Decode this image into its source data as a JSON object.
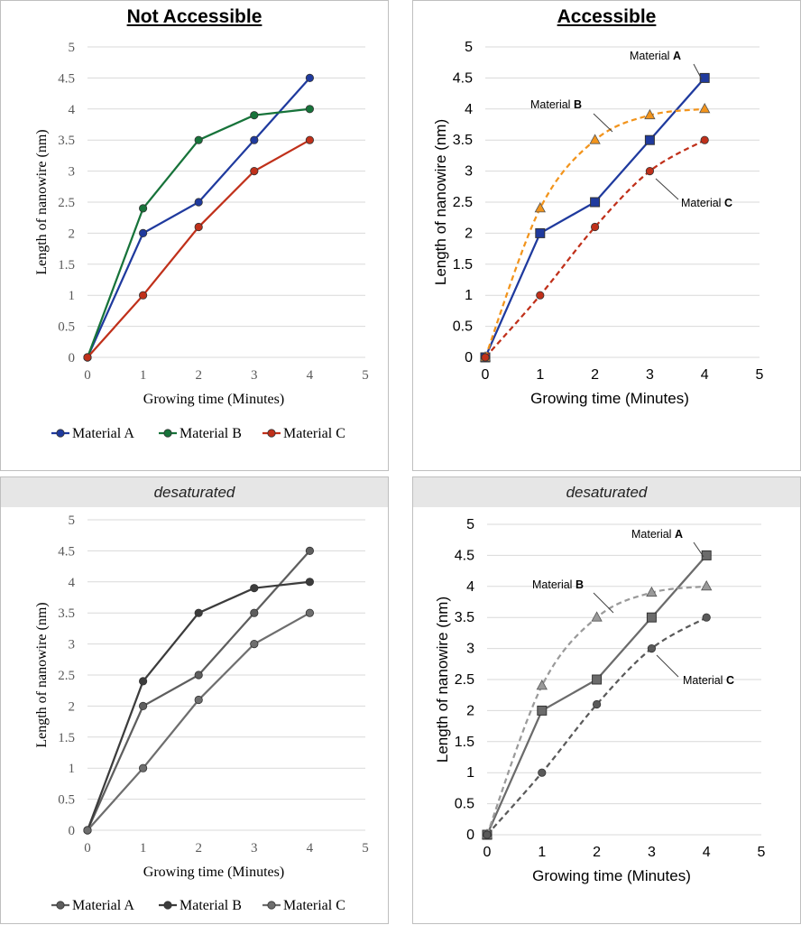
{
  "titles": {
    "not_accessible": "Not Accessible",
    "accessible": "Accessible",
    "desaturated_left": "desaturated",
    "desaturated_right": "desaturated"
  },
  "chart_data": [
    {
      "id": "top-left",
      "type": "line",
      "title": "Not Accessible",
      "xlabel": "Growing time (Minutes)",
      "ylabel": "Length of nanowire (nm)",
      "x": [
        0,
        1,
        2,
        3,
        4
      ],
      "xticks": [
        "0",
        "1",
        "2",
        "3",
        "4",
        "5"
      ],
      "yticks": [
        "0",
        "0.5",
        "1",
        "1.5",
        "2",
        "2.5",
        "3",
        "3.5",
        "4",
        "4.5",
        "5"
      ],
      "xlim": [
        0,
        5
      ],
      "ylim": [
        0,
        5
      ],
      "legend": "bottom",
      "series": [
        {
          "name": "Material A",
          "values": [
            0,
            2,
            2.5,
            3.5,
            4.5
          ],
          "color": "#1f3a9e"
        },
        {
          "name": "Material B",
          "values": [
            0,
            2.4,
            3.5,
            3.9,
            4
          ],
          "color": "#17733a"
        },
        {
          "name": "Material C",
          "values": [
            0,
            1,
            2.1,
            3,
            3.5
          ],
          "color": "#c0301a"
        }
      ]
    },
    {
      "id": "top-right",
      "type": "line",
      "title": "Accessible",
      "xlabel": "Growing time (Minutes)",
      "ylabel": "Length of nanowire (nm)",
      "x": [
        0,
        1,
        2,
        3,
        4
      ],
      "xticks": [
        "0",
        "1",
        "2",
        "3",
        "4",
        "5"
      ],
      "yticks": [
        "0",
        "0.5",
        "1",
        "1.5",
        "2",
        "2.5",
        "3",
        "3.5",
        "4",
        "4.5",
        "5"
      ],
      "xlim": [
        0,
        5
      ],
      "ylim": [
        0,
        5
      ],
      "legend": "direct labels",
      "series": [
        {
          "name": "Material A",
          "label_plain": "Material ",
          "label_bold": "A",
          "values": [
            0,
            2,
            2.5,
            3.5,
            4.5
          ],
          "color": "#1f3a9e"
        },
        {
          "name": "Material B",
          "label_plain": "Material ",
          "label_bold": "B",
          "values": [
            0,
            2.4,
            3.5,
            3.9,
            4
          ],
          "color": "#f2941c"
        },
        {
          "name": "Material C",
          "label_plain": "Material ",
          "label_bold": "C",
          "values": [
            0,
            1,
            2.1,
            3,
            3.5
          ],
          "color": "#c0301a"
        }
      ]
    },
    {
      "id": "bottom-left",
      "type": "line",
      "title": "desaturated",
      "xlabel": "Growing time (Minutes)",
      "ylabel": "Length of nanowire (nm)",
      "x": [
        0,
        1,
        2,
        3,
        4
      ],
      "xticks": [
        "0",
        "1",
        "2",
        "3",
        "4",
        "5"
      ],
      "yticks": [
        "0",
        "0.5",
        "1",
        "1.5",
        "2",
        "2.5",
        "3",
        "3.5",
        "4",
        "4.5",
        "5"
      ],
      "xlim": [
        0,
        5
      ],
      "ylim": [
        0,
        5
      ],
      "legend": "bottom",
      "series": [
        {
          "name": "Material A",
          "values": [
            0,
            2,
            2.5,
            3.5,
            4.5
          ],
          "color": "#5e5e5e"
        },
        {
          "name": "Material B",
          "values": [
            0,
            2.4,
            3.5,
            3.9,
            4
          ],
          "color": "#3c3c3c"
        },
        {
          "name": "Material C",
          "values": [
            0,
            1,
            2.1,
            3,
            3.5
          ],
          "color": "#6e6e6e"
        }
      ]
    },
    {
      "id": "bottom-right",
      "type": "line",
      "title": "desaturated",
      "xlabel": "Growing time (Minutes)",
      "ylabel": "Length of nanowire (nm)",
      "x": [
        0,
        1,
        2,
        3,
        4
      ],
      "xticks": [
        "0",
        "1",
        "2",
        "3",
        "4",
        "5"
      ],
      "yticks": [
        "0",
        "0.5",
        "1",
        "1.5",
        "2",
        "2.5",
        "3",
        "3.5",
        "4",
        "4.5",
        "5"
      ],
      "xlim": [
        0,
        5
      ],
      "ylim": [
        0,
        5
      ],
      "legend": "direct labels",
      "series": [
        {
          "name": "Material A",
          "label_plain": "Material ",
          "label_bold": "A",
          "values": [
            0,
            2,
            2.5,
            3.5,
            4.5
          ],
          "color": "#6b6b6b"
        },
        {
          "name": "Material B",
          "label_plain": "Material ",
          "label_bold": "B",
          "values": [
            0,
            2.4,
            3.5,
            3.9,
            4
          ],
          "color": "#9a9a9a"
        },
        {
          "name": "Material C",
          "label_plain": "Material ",
          "label_bold": "C",
          "values": [
            0,
            1,
            2.1,
            3,
            3.5
          ],
          "color": "#5a5a5a"
        }
      ]
    }
  ]
}
